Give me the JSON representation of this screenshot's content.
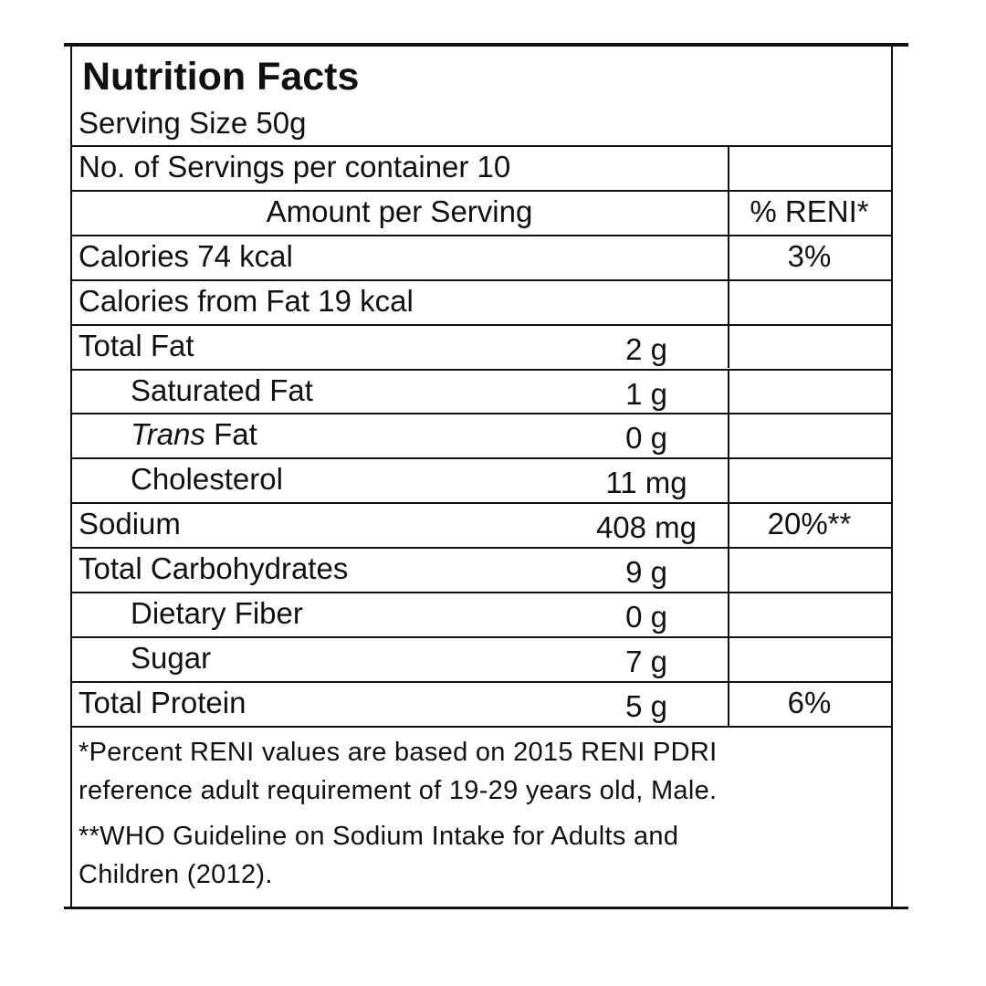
{
  "label": {
    "title": "Nutrition Facts",
    "serving_size": "Serving Size 50g",
    "servings_per_container": "No. of Servings per container 10",
    "amount_header": "Amount per Serving",
    "reni_header": "% RENI*",
    "rows": [
      {
        "label": "Calories 74 kcal",
        "reni": "3%"
      },
      {
        "label": "Calories from Fat  19 kcal"
      },
      {
        "label": "Total Fat",
        "amount": "2 g"
      },
      {
        "label": "Saturated Fat",
        "amount": "1 g",
        "level": 1
      },
      {
        "italic": "Trans",
        "label": "Fat",
        "amount": "0 g",
        "level": 1
      },
      {
        "label": "Cholesterol",
        "amount": "11 mg",
        "level": 1
      },
      {
        "label": "Sodium",
        "amount": "408 mg",
        "reni": "20%**"
      },
      {
        "label": "Total Carbohydrates",
        "amount": "9 g"
      },
      {
        "label": "Dietary Fiber",
        "amount": "0 g",
        "level": 1
      },
      {
        "label": "Sugar",
        "amount": "7 g",
        "level": 1
      },
      {
        "label": "Total Protein",
        "amount": "5 g",
        "reni": "6%"
      }
    ],
    "footnotes": [
      [
        "*Percent RENI values are based on 2015 RENI PDRI",
        "reference adult requirement of 19-29 years old, Male."
      ],
      [
        "**WHO Guideline on Sodium Intake for Adults and",
        "Children (2012)."
      ]
    ]
  }
}
